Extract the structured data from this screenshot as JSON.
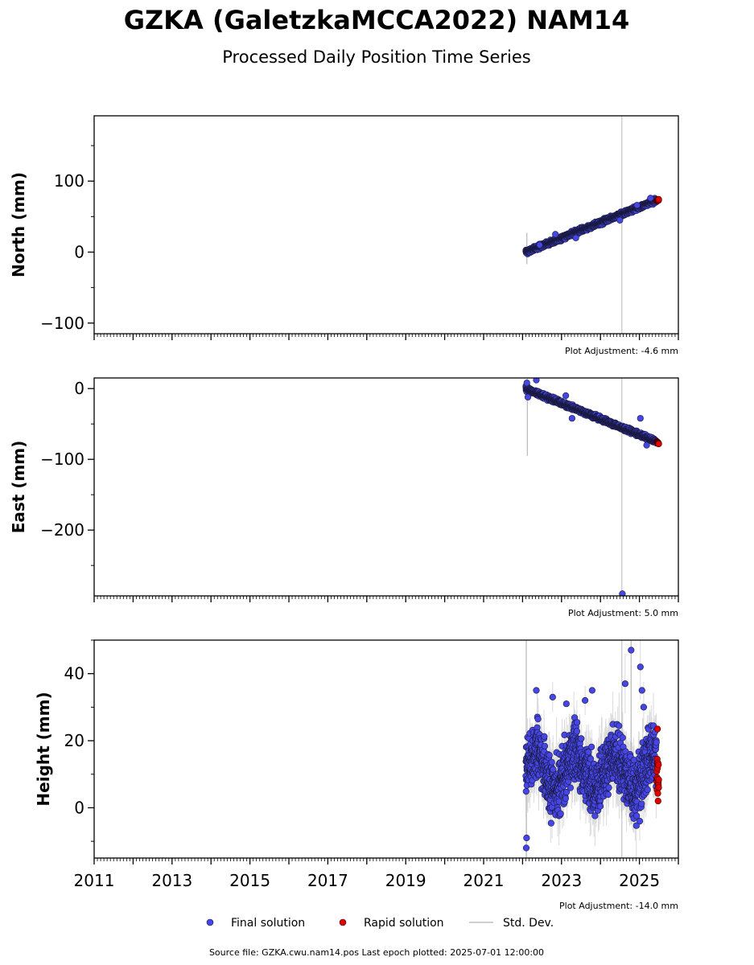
{
  "title": "GZKA (GaletzkaMCCA2022) NAM14",
  "subtitle": "Processed Daily Position Time Series",
  "colors": {
    "final": "#4646e6",
    "rapid": "#e00000",
    "stddev": "#bdbdbd",
    "edge": "#1a1a40"
  },
  "chart_data": {
    "type": "scatter",
    "x_axis": {
      "xlim": [
        "2011-01-01",
        "2026-01-01"
      ],
      "ticks": [
        "2011",
        "2013",
        "2015",
        "2017",
        "2019",
        "2021",
        "2023",
        "2025"
      ],
      "minor_ticks": "monthly"
    },
    "panels": [
      {
        "ylabel": "North (mm)",
        "ylim": [
          -115,
          192
        ],
        "yticks": [
          -100,
          0,
          100
        ],
        "ytick_labels": [
          "−100",
          "0",
          "100"
        ],
        "minor_step": 50,
        "adjustment": "Plot Adjustment: -4.6 mm",
        "final": {
          "start": "2022-02-01",
          "end": "2025-06-10",
          "start_value": 0,
          "end_value": 73,
          "scatter": 3,
          "outliers": [
            {
              "date": "2022-06-10",
              "value": 10
            },
            {
              "date": "2022-11-05",
              "value": 25
            },
            {
              "date": "2023-05-15",
              "value": 20
            },
            {
              "date": "2024-07-01",
              "value": 45
            },
            {
              "date": "2024-12-10",
              "value": 66
            },
            {
              "date": "2025-04-15",
              "value": 76
            }
          ]
        },
        "rapid": {
          "start": "2025-06-12",
          "end": "2025-07-01",
          "start_value": 72,
          "end_value": 74,
          "scatter": 1
        },
        "stddev": {
          "typical": 3,
          "spikes": [
            {
              "date": "2022-02-10",
              "value": 5,
              "sigma": 22
            }
          ]
        },
        "vline_date": "2024-07-20"
      },
      {
        "ylabel": "East (mm)",
        "ylim": [
          -293,
          15
        ],
        "yticks": [
          -200,
          -100,
          0
        ],
        "ytick_labels": [
          "−200",
          "−100",
          "0"
        ],
        "minor_step": 50,
        "adjustment": "Plot Adjustment: 5.0 mm",
        "final": {
          "start": "2022-02-01",
          "end": "2025-06-10",
          "start_value": 0,
          "end_value": -75,
          "scatter": 3,
          "outliers": [
            {
              "date": "2022-02-10",
              "value": 8
            },
            {
              "date": "2022-02-20",
              "value": -12
            },
            {
              "date": "2022-05-10",
              "value": 12
            },
            {
              "date": "2023-02-10",
              "value": -10
            },
            {
              "date": "2023-04-10",
              "value": -42
            },
            {
              "date": "2024-07-25",
              "value": -290
            },
            {
              "date": "2025-01-10",
              "value": -42
            },
            {
              "date": "2025-03-10",
              "value": -80
            }
          ]
        },
        "rapid": {
          "start": "2025-06-12",
          "end": "2025-07-01",
          "start_value": -75,
          "end_value": -78,
          "scatter": 1
        },
        "stddev": {
          "typical": 3,
          "spikes": [
            {
              "date": "2022-02-15",
              "value": -40,
              "sigma": 55
            }
          ]
        },
        "vline_date": "2024-07-20"
      },
      {
        "ylabel": "Height (mm)",
        "ylim": [
          -15,
          50
        ],
        "yticks": [
          0,
          20,
          40
        ],
        "ytick_labels": [
          "0",
          "20",
          "40"
        ],
        "minor_step": 10,
        "adjustment": "Plot Adjustment: -14.0 mm",
        "final": {
          "start": "2022-02-01",
          "end": "2025-06-10",
          "mean": 11,
          "seasonal_amplitude": 5,
          "scatter": 6,
          "outliers": [
            {
              "date": "2022-02-05",
              "value": -12
            },
            {
              "date": "2022-02-08",
              "value": -9
            },
            {
              "date": "2022-05-10",
              "value": 35
            },
            {
              "date": "2022-10-10",
              "value": 33
            },
            {
              "date": "2023-02-15",
              "value": 31
            },
            {
              "date": "2023-08-10",
              "value": 32
            },
            {
              "date": "2023-10-15",
              "value": 35
            },
            {
              "date": "2024-08-20",
              "value": 37
            },
            {
              "date": "2024-10-15",
              "value": 47
            },
            {
              "date": "2025-01-10",
              "value": 42
            },
            {
              "date": "2025-01-25",
              "value": 35
            },
            {
              "date": "2025-02-10",
              "value": 30
            },
            {
              "date": "2025-01-05",
              "value": -4
            }
          ]
        },
        "rapid": {
          "start": "2025-06-12",
          "end": "2025-07-01",
          "mean": 9,
          "scatter": 3,
          "outliers": [
            {
              "date": "2025-06-20",
              "value": 23.5
            },
            {
              "date": "2025-06-25",
              "value": 2
            }
          ]
        },
        "stddev": {
          "typical": 7,
          "spikes": [
            {
              "date": "2022-02-05",
              "value": 15,
              "sigma": 40
            },
            {
              "date": "2024-10-15",
              "value": 25,
              "sigma": 30
            }
          ]
        },
        "vline_date": "2024-07-20"
      }
    ]
  },
  "legend": {
    "final": "Final solution",
    "rapid": "Rapid solution",
    "stddev": "Std. Dev."
  },
  "footer": "Source file: GZKA.cwu.nam14.pos  Last epoch plotted: 2025-07-01 12:00:00"
}
